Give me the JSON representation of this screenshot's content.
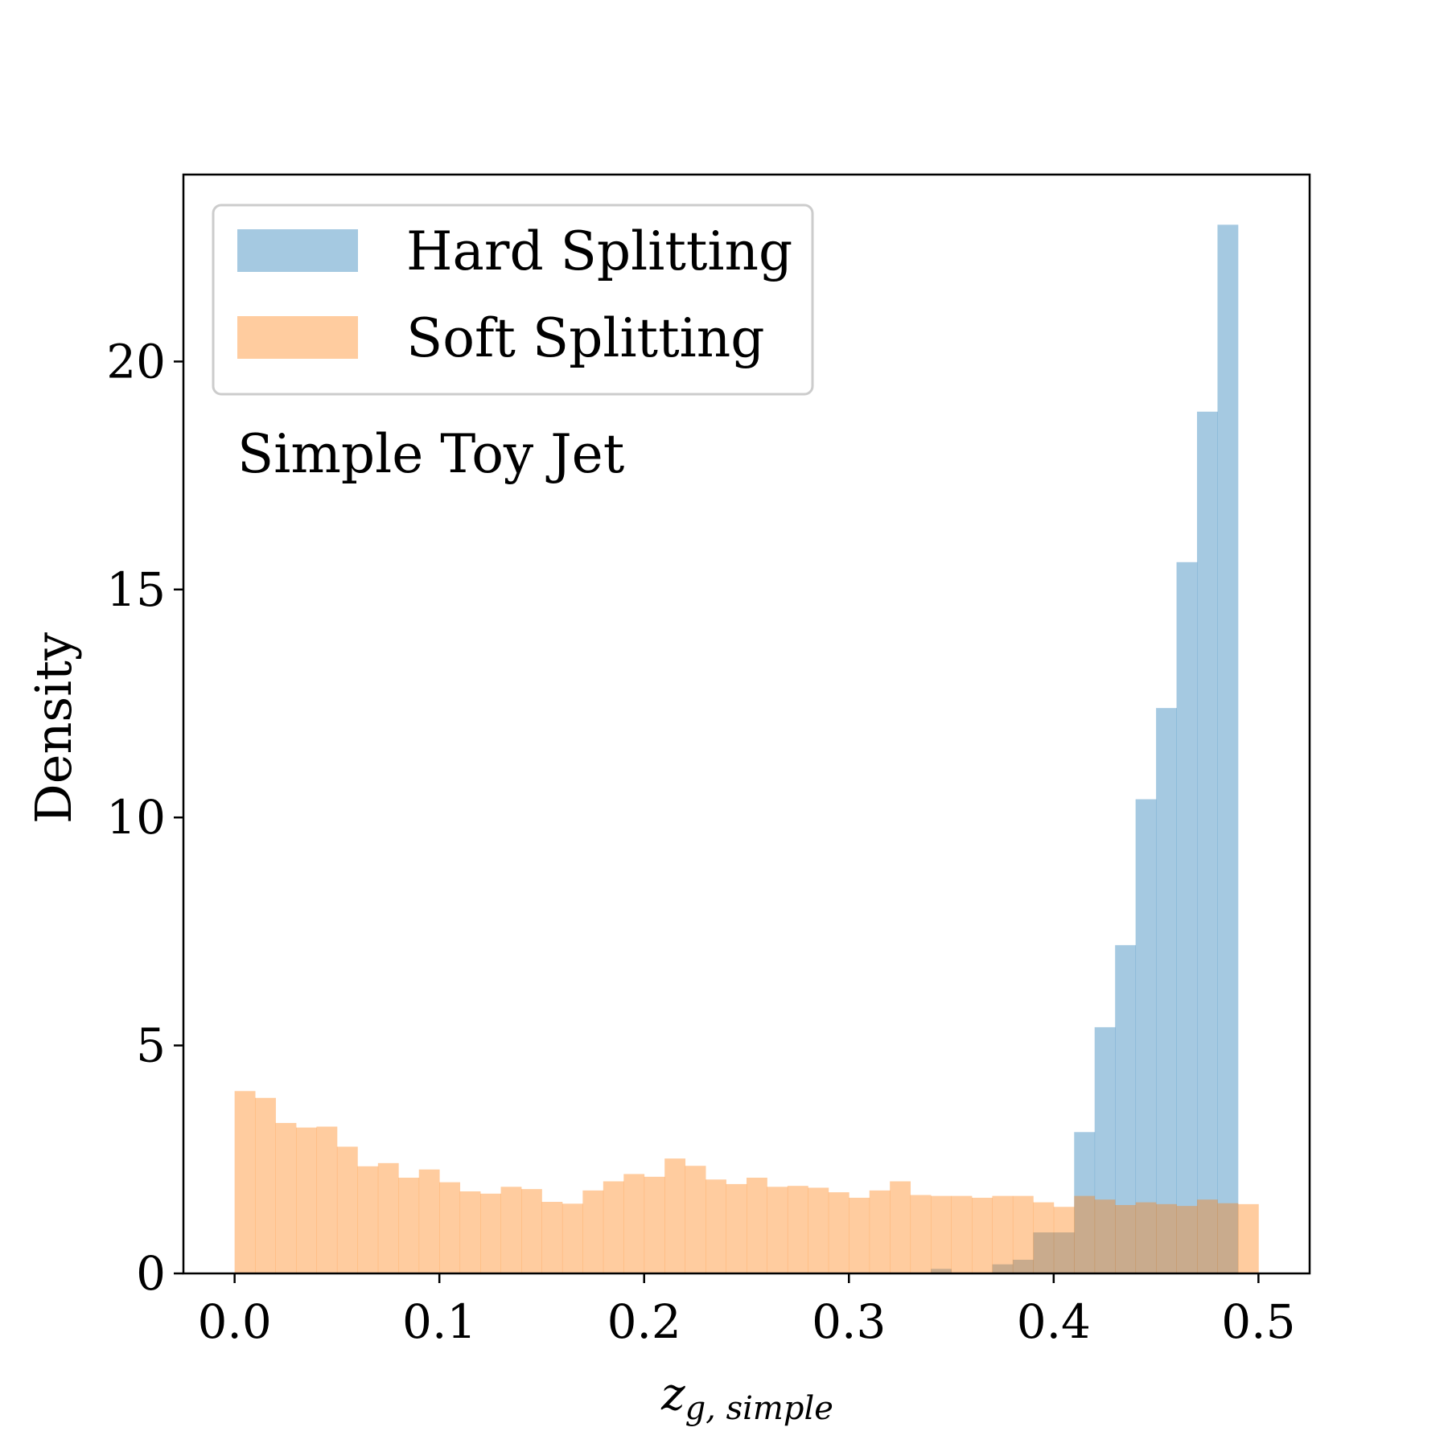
{
  "chart_data": {
    "type": "histogram",
    "xlabel": "z",
    "xlabel_sub": "g, simple",
    "ylabel": "Density",
    "annotation": "Simple Toy Jet",
    "xlim": [
      -0.025,
      0.525
    ],
    "ylim": [
      0,
      24.1
    ],
    "xticks": [
      "0.0",
      "0.1",
      "0.2",
      "0.3",
      "0.4",
      "0.5"
    ],
    "xtick_values": [
      0,
      0.1,
      0.2,
      0.3,
      0.4,
      0.5
    ],
    "yticks": [
      "0",
      "5",
      "10",
      "15",
      "20"
    ],
    "ytick_values": [
      0,
      5,
      10,
      15,
      20
    ],
    "legend_position": "upper left",
    "bins": {
      "start": 0.0,
      "end": 0.5,
      "count": 50
    },
    "series": [
      {
        "name": "Hard Splitting",
        "color": "#1f77b4",
        "opacity": 0.4,
        "values": [
          0,
          0,
          0,
          0,
          0,
          0,
          0,
          0,
          0,
          0,
          0,
          0,
          0,
          0,
          0,
          0,
          0,
          0,
          0,
          0,
          0,
          0,
          0,
          0,
          0,
          0,
          0,
          0,
          0,
          0,
          0,
          0,
          0,
          0,
          0.1,
          0,
          0,
          0.2,
          0.3,
          0.9,
          0.9,
          3.1,
          5.4,
          7.2,
          10.4,
          12.4,
          15.6,
          18.9,
          23.0,
          0
        ]
      },
      {
        "name": "Soft Splitting",
        "color": "#ff7f0e",
        "opacity": 0.4,
        "values": [
          4.0,
          3.85,
          3.3,
          3.2,
          3.22,
          2.78,
          2.35,
          2.42,
          2.1,
          2.28,
          2.0,
          1.8,
          1.75,
          1.9,
          1.85,
          1.57,
          1.53,
          1.82,
          2.02,
          2.18,
          2.12,
          2.52,
          2.36,
          2.06,
          1.96,
          2.1,
          1.9,
          1.92,
          1.88,
          1.78,
          1.66,
          1.82,
          2.02,
          1.72,
          1.7,
          1.7,
          1.66,
          1.7,
          1.7,
          1.56,
          1.46,
          1.7,
          1.62,
          1.5,
          1.56,
          1.52,
          1.48,
          1.62,
          1.54,
          1.52
        ]
      }
    ]
  }
}
